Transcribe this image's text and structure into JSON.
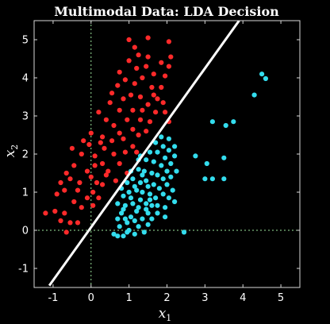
{
  "chart_data": {
    "type": "scatter",
    "title": "Multimodal Data: LDA Decision",
    "xlabel": "x",
    "xlabel_sub": "1",
    "ylabel": "x",
    "ylabel_sub": "2",
    "xlim": [
      -1.5,
      5.5
    ],
    "ylim": [
      -1.5,
      5.5
    ],
    "xticks": [
      -1,
      0,
      1,
      2,
      3,
      4,
      5
    ],
    "yticks": [
      -1,
      0,
      1,
      2,
      3,
      4,
      5
    ],
    "grid": false,
    "reference_lines": {
      "x": 0,
      "y": 0,
      "color": "#9be39b",
      "style": "dashed"
    },
    "decision_boundary": {
      "points": [
        [
          -1.1,
          -1.45
        ],
        [
          3.9,
          5.5
        ]
      ],
      "color": "#ffffff"
    },
    "colors": {
      "background": "#000000",
      "class_a": "#ff2a2a",
      "class_b": "#33ddee"
    },
    "series": [
      {
        "color": "#ff2a2a",
        "points": [
          [
            -1.2,
            0.45
          ],
          [
            -0.95,
            0.5
          ],
          [
            -0.7,
            0.45
          ],
          [
            -0.8,
            0.25
          ],
          [
            -0.55,
            0.2
          ],
          [
            -0.35,
            0.2
          ],
          [
            -0.65,
            -0.05
          ],
          [
            -0.9,
            0.95
          ],
          [
            -0.7,
            1.05
          ],
          [
            -0.45,
            0.75
          ],
          [
            -0.25,
            0.6
          ],
          [
            -0.1,
            0.85
          ],
          [
            0.05,
            0.65
          ],
          [
            -0.55,
            1.35
          ],
          [
            -0.3,
            1.25
          ],
          [
            -0.1,
            1.55
          ],
          [
            0.1,
            1.7
          ],
          [
            -0.45,
            1.7
          ],
          [
            -0.65,
            1.5
          ],
          [
            -0.25,
            2.0
          ],
          [
            -0.5,
            2.15
          ],
          [
            0.1,
            1.95
          ],
          [
            0.3,
            1.75
          ],
          [
            0.35,
            2.15
          ],
          [
            0.55,
            2.35
          ],
          [
            0.3,
            2.45
          ],
          [
            0.0,
            2.55
          ],
          [
            0.6,
            2.0
          ],
          [
            0.15,
            1.25
          ],
          [
            0.05,
            1.0
          ],
          [
            0.45,
            1.55
          ],
          [
            0.75,
            1.75
          ],
          [
            0.9,
            2.05
          ],
          [
            0.85,
            2.4
          ],
          [
            1.1,
            2.2
          ],
          [
            1.25,
            2.5
          ],
          [
            0.6,
            2.75
          ],
          [
            0.4,
            2.9
          ],
          [
            0.2,
            3.1
          ],
          [
            0.5,
            3.35
          ],
          [
            0.75,
            3.15
          ],
          [
            0.95,
            2.9
          ],
          [
            1.1,
            3.15
          ],
          [
            1.3,
            2.9
          ],
          [
            1.45,
            2.6
          ],
          [
            1.55,
            2.85
          ],
          [
            1.7,
            3.1
          ],
          [
            1.5,
            3.3
          ],
          [
            1.3,
            3.5
          ],
          [
            1.05,
            3.55
          ],
          [
            0.85,
            3.45
          ],
          [
            0.55,
            3.6
          ],
          [
            0.7,
            3.8
          ],
          [
            0.9,
            3.95
          ],
          [
            1.15,
            3.85
          ],
          [
            1.35,
            4.0
          ],
          [
            1.6,
            3.75
          ],
          [
            1.75,
            3.45
          ],
          [
            1.9,
            3.35
          ],
          [
            1.85,
            3.75
          ],
          [
            1.65,
            4.1
          ],
          [
            1.45,
            4.3
          ],
          [
            1.2,
            4.25
          ],
          [
            1.0,
            4.45
          ],
          [
            1.25,
            4.6
          ],
          [
            1.5,
            4.55
          ],
          [
            1.85,
            4.4
          ],
          [
            1.95,
            4.05
          ],
          [
            2.05,
            4.3
          ],
          [
            1.95,
            3.1
          ],
          [
            2.05,
            2.85
          ],
          [
            1.35,
            3.15
          ],
          [
            1.1,
            2.65
          ],
          [
            0.75,
            2.55
          ],
          [
            0.25,
            2.3
          ],
          [
            1.0,
            5.0
          ],
          [
            1.5,
            5.05
          ],
          [
            2.05,
            4.95
          ],
          [
            2.1,
            4.55
          ],
          [
            1.15,
            4.8
          ],
          [
            0.75,
            4.15
          ],
          [
            1.65,
            3.55
          ],
          [
            -0.05,
            2.25
          ],
          [
            0.4,
            1.45
          ],
          [
            0.65,
            1.3
          ],
          [
            -0.35,
            1.05
          ],
          [
            0.2,
            0.85
          ],
          [
            0.3,
            1.2
          ],
          [
            0.0,
            1.4
          ],
          [
            -0.8,
            1.25
          ],
          [
            -0.2,
            2.35
          ],
          [
            1.2,
            2.05
          ],
          [
            0.95,
            1.5
          ]
        ]
      },
      {
        "color": "#33ddee",
        "points": [
          [
            0.6,
            -0.1
          ],
          [
            0.75,
            0.1
          ],
          [
            0.85,
            -0.15
          ],
          [
            1.0,
            0.0
          ],
          [
            1.15,
            -0.1
          ],
          [
            1.25,
            0.1
          ],
          [
            0.95,
            0.2
          ],
          [
            0.7,
            0.3
          ],
          [
            0.8,
            0.45
          ],
          [
            1.05,
            0.35
          ],
          [
            1.2,
            0.5
          ],
          [
            1.35,
            0.3
          ],
          [
            1.5,
            0.45
          ],
          [
            1.6,
            0.65
          ],
          [
            1.45,
            0.7
          ],
          [
            1.3,
            0.8
          ],
          [
            1.1,
            0.7
          ],
          [
            0.9,
            0.65
          ],
          [
            0.85,
            0.9
          ],
          [
            1.0,
            1.0
          ],
          [
            1.2,
            1.05
          ],
          [
            1.35,
            1.0
          ],
          [
            1.55,
            0.95
          ],
          [
            1.7,
            0.85
          ],
          [
            1.8,
            1.1
          ],
          [
            1.65,
            1.2
          ],
          [
            1.45,
            1.3
          ],
          [
            1.3,
            1.25
          ],
          [
            1.1,
            1.35
          ],
          [
            0.95,
            1.25
          ],
          [
            1.05,
            1.55
          ],
          [
            1.25,
            1.6
          ],
          [
            1.4,
            1.55
          ],
          [
            1.6,
            1.5
          ],
          [
            1.75,
            1.45
          ],
          [
            1.9,
            1.35
          ],
          [
            2.0,
            1.55
          ],
          [
            1.85,
            1.7
          ],
          [
            1.65,
            1.8
          ],
          [
            1.45,
            1.85
          ],
          [
            1.3,
            1.95
          ],
          [
            1.55,
            2.05
          ],
          [
            1.75,
            2.05
          ],
          [
            1.95,
            1.9
          ],
          [
            2.1,
            1.75
          ],
          [
            2.05,
            2.1
          ],
          [
            1.9,
            2.2
          ],
          [
            1.7,
            2.3
          ],
          [
            1.85,
            2.45
          ],
          [
            2.05,
            2.4
          ],
          [
            2.2,
            2.2
          ],
          [
            2.2,
            1.95
          ],
          [
            1.6,
            0.3
          ],
          [
            1.75,
            0.45
          ],
          [
            1.95,
            0.6
          ],
          [
            2.05,
            0.85
          ],
          [
            2.15,
            1.05
          ],
          [
            2.0,
            1.2
          ],
          [
            2.1,
            1.4
          ],
          [
            1.5,
            0.15
          ],
          [
            1.4,
            -0.05
          ],
          [
            0.7,
            -0.15
          ],
          [
            0.95,
            -0.05
          ],
          [
            1.15,
            0.25
          ],
          [
            0.85,
            0.55
          ],
          [
            0.7,
            0.7
          ],
          [
            1.25,
            0.6
          ],
          [
            1.55,
            0.8
          ],
          [
            1.05,
            0.85
          ],
          [
            1.35,
            1.45
          ],
          [
            1.5,
            1.15
          ],
          [
            1.75,
            0.65
          ],
          [
            1.25,
            1.85
          ],
          [
            2.25,
            1.55
          ],
          [
            2.2,
            0.75
          ],
          [
            1.95,
            0.35
          ],
          [
            2.45,
            -0.05
          ],
          [
            2.75,
            1.95
          ],
          [
            3.2,
            2.85
          ],
          [
            3.55,
            2.75
          ],
          [
            3.75,
            2.85
          ],
          [
            3.05,
            1.75
          ],
          [
            3.5,
            1.9
          ],
          [
            3.0,
            1.35
          ],
          [
            3.2,
            1.35
          ],
          [
            3.5,
            1.35
          ],
          [
            4.3,
            3.55
          ],
          [
            4.5,
            4.1
          ],
          [
            4.6,
            3.98
          ],
          [
            0.8,
            1.1
          ],
          [
            1.15,
            1.15
          ],
          [
            1.45,
            0.55
          ],
          [
            1.9,
            0.95
          ],
          [
            0.9,
            0.3
          ]
        ]
      }
    ]
  }
}
